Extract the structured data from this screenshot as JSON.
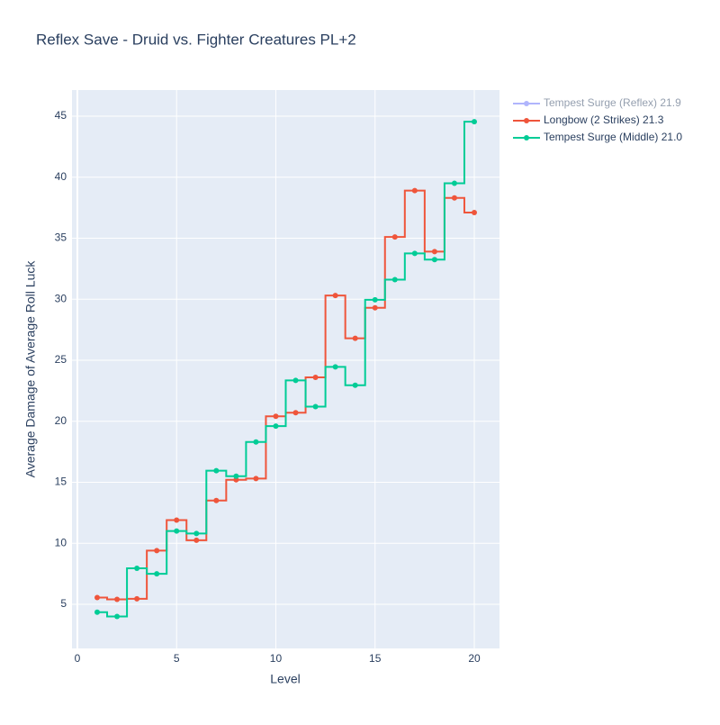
{
  "chart_data": {
    "type": "step-line",
    "line_shape": "hvh",
    "title": "Reflex Save - Druid vs. Fighter Creatures PL+2",
    "x_label": "Level",
    "y_label": "Average Damage of Average Roll Luck",
    "x": [
      1,
      2,
      3,
      4,
      5,
      6,
      7,
      8,
      9,
      10,
      11,
      12,
      13,
      14,
      15,
      16,
      17,
      18,
      19,
      20
    ],
    "series": [
      {
        "name": "Tempest Surge (Reflex) 21.9",
        "color": "#636efa",
        "hidden": true
      },
      {
        "name": "Longbow (2 Strikes) 21.3",
        "color": "#EF553B",
        "values": [
          5.55,
          5.4,
          5.45,
          9.4,
          11.9,
          10.25,
          13.5,
          15.2,
          15.3,
          20.4,
          20.7,
          23.6,
          30.3,
          26.8,
          29.3,
          35.1,
          38.9,
          33.9,
          38.3,
          37.1
        ]
      },
      {
        "name": "Tempest Surge (Middle) 21.0",
        "color": "#00CC96",
        "values": [
          4.35,
          4.0,
          7.95,
          7.5,
          11.0,
          10.8,
          15.95,
          15.5,
          18.3,
          19.6,
          23.35,
          21.2,
          24.45,
          22.95,
          29.95,
          31.6,
          33.75,
          33.25,
          39.5,
          44.55
        ]
      }
    ],
    "xlim": [
      -0.27,
      21.27
    ],
    "ylim": [
      1.38,
      47.14
    ],
    "xticks": [
      0,
      5,
      10,
      15,
      20
    ],
    "yticks": [
      5,
      10,
      15,
      20,
      25,
      30,
      35,
      40,
      45
    ],
    "grid": true,
    "legend": "outside-right"
  }
}
